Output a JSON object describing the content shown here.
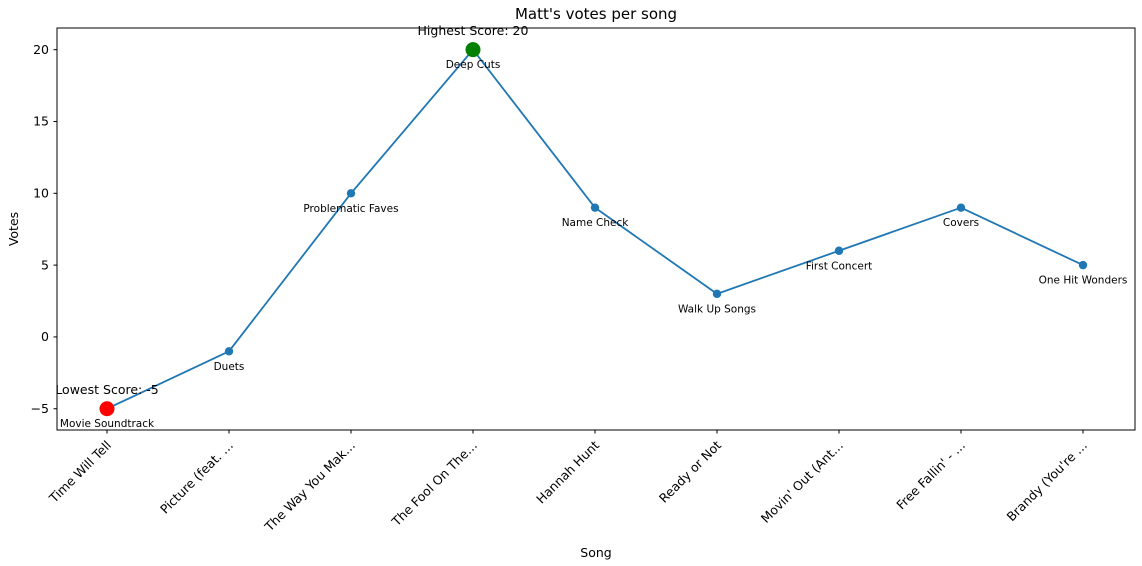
{
  "chart_data": {
    "type": "line",
    "title": "Matt's votes per song",
    "xlabel": "Song",
    "ylabel": "Votes",
    "categories": [
      "Time Will Tell",
      "Picture (feat. …",
      "The Way You Mak…",
      "The Fool On The…",
      "Hannah Hunt",
      "Ready or Not",
      "Movin' Out (Ant…",
      "Free Fallin' - …",
      "Brandy (You're …"
    ],
    "values": [
      -5,
      -1,
      10,
      20,
      9,
      3,
      6,
      9,
      5
    ],
    "point_labels": [
      "Movie Soundtrack",
      "Duets",
      "Problematic Faves",
      "Deep Cuts",
      "Name Check",
      "Walk Up Songs",
      "First Concert",
      "Covers",
      "One Hit Wonders"
    ],
    "yticks": [
      -5,
      0,
      5,
      10,
      15,
      20
    ],
    "ytick_labels": [
      "−5",
      "0",
      "5",
      "10",
      "15",
      "20"
    ],
    "ylim": [
      -6.48,
      21.51
    ],
    "grid": false,
    "legend": null,
    "line_color": "#1f77b4",
    "marker_color": "#1f77b4",
    "annotations": [
      {
        "text": "Highest Score: 20",
        "index": 3,
        "color": "#008000"
      },
      {
        "text": "Lowest Score: -5",
        "index": 0,
        "color": "#ff0000"
      }
    ],
    "highlight_points": [
      {
        "index": 3,
        "color": "#008000"
      },
      {
        "index": 0,
        "color": "#ff0000"
      }
    ]
  }
}
